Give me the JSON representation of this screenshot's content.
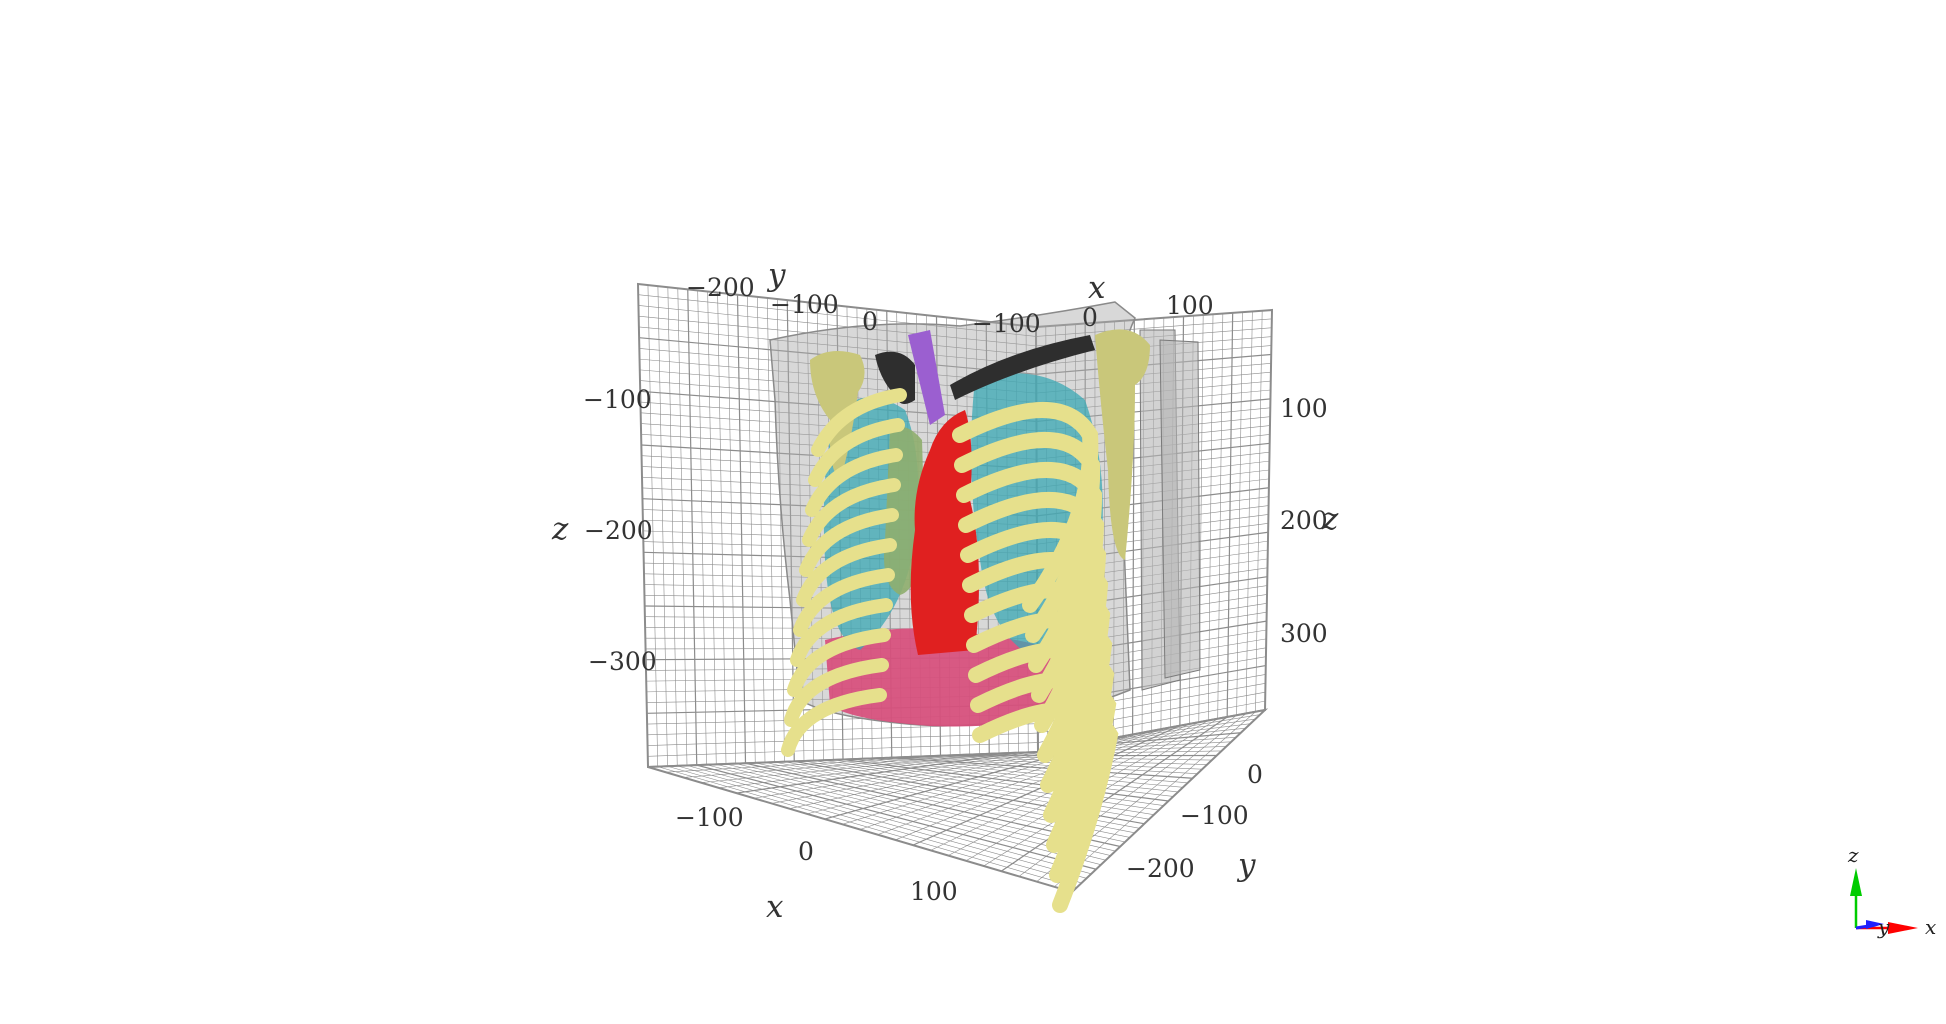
{
  "scene": {
    "grid_color": "#8c8c8c",
    "structures": [
      {
        "name": "body-surface",
        "color": "#a9a9a9"
      },
      {
        "name": "ribs",
        "color": "#e6e08c"
      },
      {
        "name": "shoulder-bones",
        "color": "#c9c77a"
      },
      {
        "name": "lungs",
        "color": "#3aa8b4"
      },
      {
        "name": "aorta",
        "color": "#e02020"
      },
      {
        "name": "trachea",
        "color": "#9b5fd0"
      },
      {
        "name": "clavicles",
        "color": "#2e2e2e"
      },
      {
        "name": "liver",
        "color": "#d84b7a"
      },
      {
        "name": "esophagus",
        "color": "#8fae6e"
      }
    ]
  },
  "axes": {
    "top_y": {
      "name": "y",
      "ticks": [
        "−200",
        "−100",
        "0"
      ]
    },
    "top_x": {
      "name": "x",
      "ticks": [
        "−100",
        "0",
        "100"
      ]
    },
    "left_z": {
      "name": "z",
      "ticks": [
        "−100",
        "−200",
        "−300"
      ]
    },
    "right_z": {
      "name": "z",
      "ticks": [
        "100",
        "200",
        "300"
      ]
    },
    "bottom_x": {
      "name": "x",
      "ticks": [
        "−100",
        "0",
        "100"
      ]
    },
    "bottom_y": {
      "name": "y",
      "ticks": [
        "0",
        "−100",
        "−200"
      ]
    }
  },
  "orientation": {
    "labels": {
      "z": "z",
      "y": "y",
      "x": "x"
    },
    "colors": {
      "z": "#00cc00",
      "y": "#2020ff",
      "x": "#ff0000"
    }
  }
}
